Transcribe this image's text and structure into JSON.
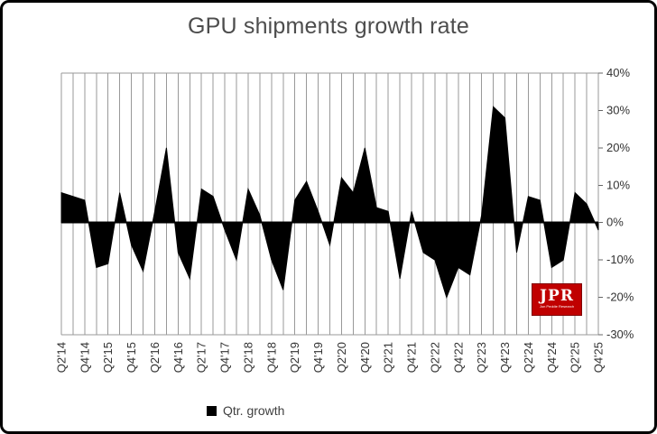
{
  "chart_data": {
    "type": "area",
    "title": "GPU shipments growth rate",
    "legend": "Qtr. growth",
    "xlabel": "",
    "ylabel": "",
    "ylim": [
      -30,
      40
    ],
    "grid": "vertical-only",
    "legend_position": "bottom",
    "y_axis_side": "right",
    "y_ticks": [
      "40%",
      "30%",
      "20%",
      "10%",
      "0%",
      "-10%",
      "-20%",
      "-30%"
    ],
    "y_tick_values": [
      40,
      30,
      20,
      10,
      0,
      -10,
      -20,
      -30
    ],
    "x_tick_labels": [
      "Q2'14",
      "Q4'14",
      "Q2'15",
      "Q4'15",
      "Q2'16",
      "Q4'16",
      "Q2'17",
      "Q4'17",
      "Q2'18",
      "Q4'18",
      "Q2'19",
      "Q4'19",
      "Q2'20",
      "Q4'20",
      "Q2'21",
      "Q4'21",
      "Q2'22",
      "Q4'22",
      "Q2'23",
      "Q4'23",
      "Q2'24",
      "Q4'24",
      "Q2'25",
      "Q4'25"
    ],
    "categories": [
      "Q2'14",
      "Q3'14",
      "Q4'14",
      "Q1'15",
      "Q2'15",
      "Q3'15",
      "Q4'15",
      "Q1'16",
      "Q2'16",
      "Q3'16",
      "Q4'16",
      "Q1'17",
      "Q2'17",
      "Q3'17",
      "Q4'17",
      "Q1'18",
      "Q2'18",
      "Q3'18",
      "Q4'18",
      "Q1'19",
      "Q2'19",
      "Q3'19",
      "Q4'19",
      "Q1'20",
      "Q2'20",
      "Q3'20",
      "Q4'20",
      "Q1'21",
      "Q2'21",
      "Q3'21",
      "Q4'21",
      "Q1'22",
      "Q2'22",
      "Q3'22",
      "Q4'22",
      "Q1'23",
      "Q2'23",
      "Q3'23",
      "Q4'23",
      "Q1'24",
      "Q2'24",
      "Q3'24",
      "Q4'24",
      "Q1'25",
      "Q2'25",
      "Q3'25",
      "Q4'25"
    ],
    "values": [
      8,
      7,
      6,
      -12,
      -11,
      8,
      -6,
      -13,
      3,
      20,
      -8,
      -15,
      9,
      7,
      -2,
      -10,
      9,
      2,
      -10,
      -18,
      6,
      11,
      3,
      -6,
      12,
      8,
      20,
      4,
      3,
      -15,
      3,
      -8,
      -10,
      -20,
      -12,
      -14,
      2,
      31,
      28,
      -8,
      7,
      6,
      -12,
      -10,
      8,
      5,
      -2
    ],
    "fill_color": "#000000",
    "gridline_color": "#999999",
    "axis_text_color": "#333333",
    "title_color": "#4d4d4d"
  },
  "logo": {
    "text": "JPR",
    "subtext": "Jon Peddie Research",
    "bg_color": "#c00000"
  }
}
